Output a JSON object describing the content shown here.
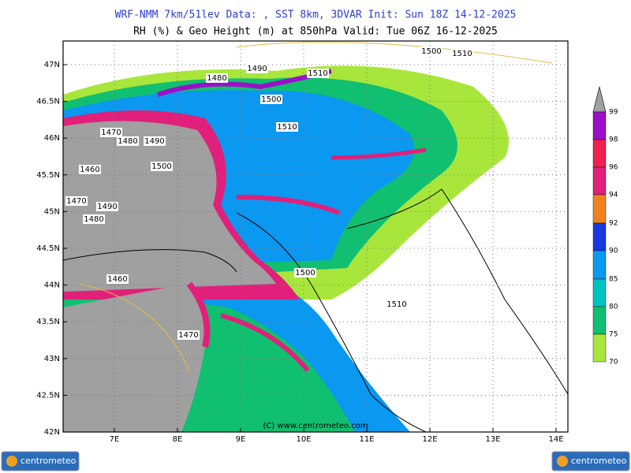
{
  "header": {
    "line1": "WRF-NMM 7km/51lev  Data: , SST 8km, 3DVAR  Init: Sun 18Z 14-12-2025",
    "line2": "RH (%) & Geo Height (m) at 850hPa  Valid: Tue 06Z 16-12-2025"
  },
  "map": {
    "lat_labels": [
      "47N",
      "46.5N",
      "46N",
      "45.5N",
      "45N",
      "44.5N",
      "44N",
      "43.5N",
      "43N",
      "42.5N",
      "42N"
    ],
    "lon_labels": [
      "7E",
      "8E",
      "9E",
      "10E",
      "11E",
      "12E",
      "13E",
      "14E"
    ],
    "contour_labels": [
      "1500",
      "1510",
      "1490",
      "1480",
      "1510",
      "1500",
      "1510",
      "1470",
      "1480",
      "1490",
      "1500",
      "1460",
      "1470",
      "1490",
      "1480",
      "1460",
      "1500",
      "1510",
      "1470"
    ],
    "copyright": "(C) www.centrometeo.com"
  },
  "legend": {
    "levels": [
      {
        "label": "99",
        "color": "#9a10c8"
      },
      {
        "label": "98",
        "color": "#f02050"
      },
      {
        "label": "96",
        "color": "#e0207a"
      },
      {
        "label": "94",
        "color": "#f08020"
      },
      {
        "label": "92",
        "color": "#1838e0"
      },
      {
        "label": "90",
        "color": "#0a98f0"
      },
      {
        "label": "85",
        "color": "#00c4c0"
      },
      {
        "label": "80",
        "color": "#10c070"
      },
      {
        "label": "75",
        "color": "#a8e63c"
      },
      {
        "label": "70",
        "color": "#a8e63c"
      }
    ],
    "top_color": "#a0a0a0"
  },
  "logos": [
    "centrometeo",
    "centrometeo"
  ]
}
